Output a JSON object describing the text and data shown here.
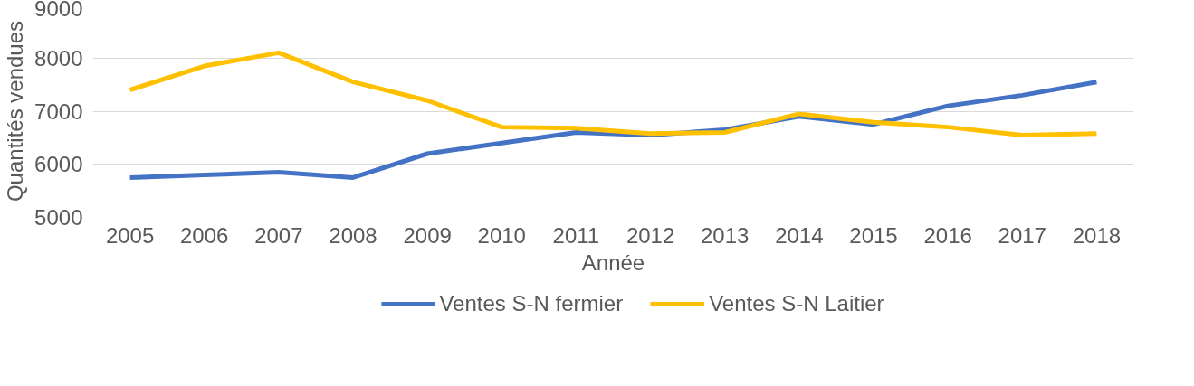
{
  "chart_data": {
    "type": "line",
    "xlabel": "Année",
    "ylabel": "Quantités vendues",
    "categories": [
      "2005",
      "2006",
      "2007",
      "2008",
      "2009",
      "2010",
      "2011",
      "2012",
      "2013",
      "2014",
      "2015",
      "2016",
      "2017",
      "2018"
    ],
    "series": [
      {
        "name": "Ventes S-N fermier",
        "color": "#4472c4",
        "values": [
          5750,
          5800,
          5850,
          5750,
          6200,
          6400,
          6600,
          6550,
          6650,
          6900,
          6750,
          7100,
          7300,
          7550
        ]
      },
      {
        "name": "Ventes S-N Laitier",
        "color": "#ffc000",
        "values": [
          7400,
          7850,
          8100,
          7550,
          7200,
          6700,
          6680,
          6580,
          6600,
          6950,
          6790,
          6700,
          6550,
          6580
        ]
      }
    ],
    "ylim": [
      5000,
      9000
    ],
    "yticks": [
      5000,
      6000,
      7000,
      8000,
      9000
    ],
    "grid": "y",
    "legend": "bottom",
    "marker": "none",
    "line_style": "solid"
  }
}
